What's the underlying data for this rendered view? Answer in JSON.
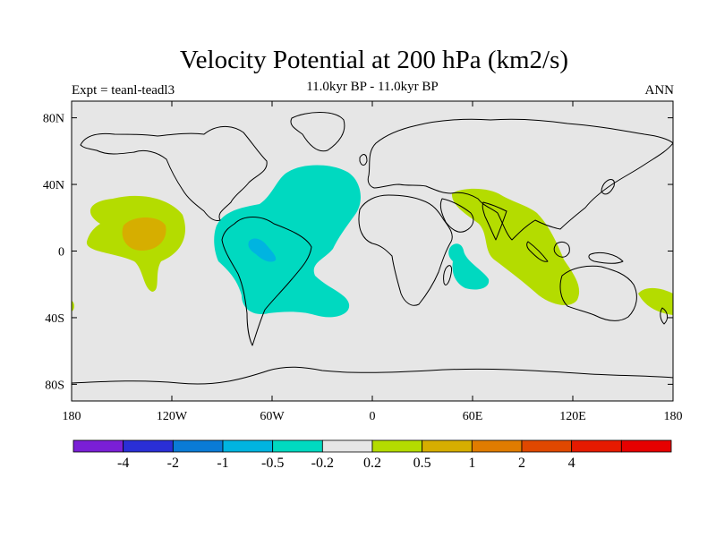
{
  "header": {
    "title": "Velocity Potential at 200 hPa (km2/s)",
    "subtitle": "11.0kyr BP - 11.0kyr BP",
    "left_label": "Expt = teanl-teadl3",
    "right_label": "ANN"
  },
  "map": {
    "projection": "cylindrical-equidistant",
    "lon_range": [
      -180,
      180
    ],
    "lat_range": [
      -90,
      90
    ],
    "background_color": "#e6e6e6",
    "lat_ticks": [
      {
        "lat": 80,
        "label": "80N"
      },
      {
        "lat": 40,
        "label": "40N"
      },
      {
        "lat": 0,
        "label": "0"
      },
      {
        "lat": -40,
        "label": "40S"
      },
      {
        "lat": -80,
        "label": "80S"
      }
    ],
    "lon_ticks": [
      {
        "lon": -180,
        "label": "180"
      },
      {
        "lon": -120,
        "label": "120W"
      },
      {
        "lon": -60,
        "label": "60W"
      },
      {
        "lon": 0,
        "label": "0"
      },
      {
        "lon": 60,
        "label": "60E"
      },
      {
        "lon": 120,
        "label": "120E"
      },
      {
        "lon": 180,
        "label": "180"
      }
    ]
  },
  "colorbar": {
    "colors": [
      "#7a1fd6",
      "#2a2fd6",
      "#0a7bd6",
      "#00b4e0",
      "#00d9c0",
      "#e6e6e6",
      "#b4dc00",
      "#d6ae00",
      "#e07c00",
      "#e04800",
      "#e61a00",
      "#e60000"
    ],
    "labels": [
      "-4",
      "-2",
      "-1",
      "-0.5",
      "-0.2",
      "0.2",
      "0.5",
      "1",
      "2",
      "4"
    ]
  }
}
